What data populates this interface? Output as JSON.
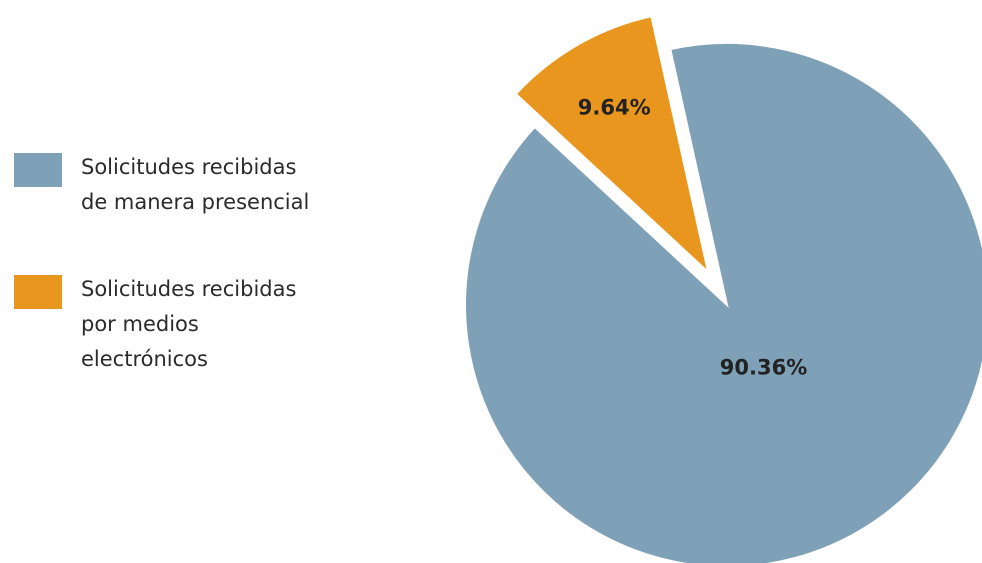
{
  "chart_data": {
    "type": "pie",
    "title": "",
    "series": [
      {
        "name": "Solicitudes recibidas de manera presencial",
        "legend_lines": [
          "Solicitudes recibidas",
          "de manera presencial"
        ],
        "value": 90.36,
        "label": "90.36%",
        "color": "#7fa1b8",
        "exploded": false
      },
      {
        "name": "Solicitudes recibidas por medios electrónicos",
        "legend_lines": [
          "Solicitudes recibidas",
          "por medios",
          "electrónicos"
        ],
        "value": 9.64,
        "label": "9.64%",
        "color": "#e8961e",
        "exploded": true
      }
    ],
    "legend_position": "left",
    "grid": false
  }
}
